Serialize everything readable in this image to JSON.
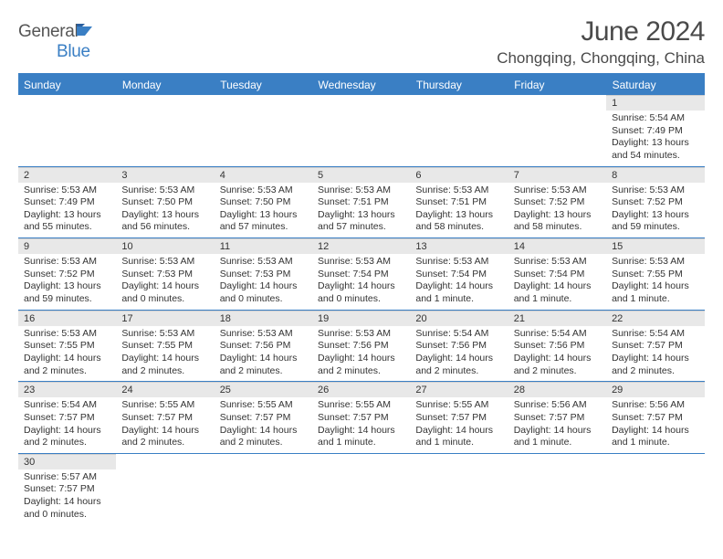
{
  "logo": {
    "general": "General",
    "blue": "Blue"
  },
  "title": "June 2024",
  "location": "Chongqing, Chongqing, China",
  "day_headers": [
    "Sunday",
    "Monday",
    "Tuesday",
    "Wednesday",
    "Thursday",
    "Friday",
    "Saturday"
  ],
  "colors": {
    "accent": "#3a7fc4",
    "header_text": "#ffffff",
    "daynum_bg": "#e8e8e8",
    "text": "#333333",
    "title_text": "#4a4a4a"
  },
  "weeks": [
    [
      null,
      null,
      null,
      null,
      null,
      null,
      {
        "n": "1",
        "lines": [
          "Sunrise: 5:54 AM",
          "Sunset: 7:49 PM",
          "Daylight: 13 hours",
          "and 54 minutes."
        ]
      }
    ],
    [
      {
        "n": "2",
        "lines": [
          "Sunrise: 5:53 AM",
          "Sunset: 7:49 PM",
          "Daylight: 13 hours",
          "and 55 minutes."
        ]
      },
      {
        "n": "3",
        "lines": [
          "Sunrise: 5:53 AM",
          "Sunset: 7:50 PM",
          "Daylight: 13 hours",
          "and 56 minutes."
        ]
      },
      {
        "n": "4",
        "lines": [
          "Sunrise: 5:53 AM",
          "Sunset: 7:50 PM",
          "Daylight: 13 hours",
          "and 57 minutes."
        ]
      },
      {
        "n": "5",
        "lines": [
          "Sunrise: 5:53 AM",
          "Sunset: 7:51 PM",
          "Daylight: 13 hours",
          "and 57 minutes."
        ]
      },
      {
        "n": "6",
        "lines": [
          "Sunrise: 5:53 AM",
          "Sunset: 7:51 PM",
          "Daylight: 13 hours",
          "and 58 minutes."
        ]
      },
      {
        "n": "7",
        "lines": [
          "Sunrise: 5:53 AM",
          "Sunset: 7:52 PM",
          "Daylight: 13 hours",
          "and 58 minutes."
        ]
      },
      {
        "n": "8",
        "lines": [
          "Sunrise: 5:53 AM",
          "Sunset: 7:52 PM",
          "Daylight: 13 hours",
          "and 59 minutes."
        ]
      }
    ],
    [
      {
        "n": "9",
        "lines": [
          "Sunrise: 5:53 AM",
          "Sunset: 7:52 PM",
          "Daylight: 13 hours",
          "and 59 minutes."
        ]
      },
      {
        "n": "10",
        "lines": [
          "Sunrise: 5:53 AM",
          "Sunset: 7:53 PM",
          "Daylight: 14 hours",
          "and 0 minutes."
        ]
      },
      {
        "n": "11",
        "lines": [
          "Sunrise: 5:53 AM",
          "Sunset: 7:53 PM",
          "Daylight: 14 hours",
          "and 0 minutes."
        ]
      },
      {
        "n": "12",
        "lines": [
          "Sunrise: 5:53 AM",
          "Sunset: 7:54 PM",
          "Daylight: 14 hours",
          "and 0 minutes."
        ]
      },
      {
        "n": "13",
        "lines": [
          "Sunrise: 5:53 AM",
          "Sunset: 7:54 PM",
          "Daylight: 14 hours",
          "and 1 minute."
        ]
      },
      {
        "n": "14",
        "lines": [
          "Sunrise: 5:53 AM",
          "Sunset: 7:54 PM",
          "Daylight: 14 hours",
          "and 1 minute."
        ]
      },
      {
        "n": "15",
        "lines": [
          "Sunrise: 5:53 AM",
          "Sunset: 7:55 PM",
          "Daylight: 14 hours",
          "and 1 minute."
        ]
      }
    ],
    [
      {
        "n": "16",
        "lines": [
          "Sunrise: 5:53 AM",
          "Sunset: 7:55 PM",
          "Daylight: 14 hours",
          "and 2 minutes."
        ]
      },
      {
        "n": "17",
        "lines": [
          "Sunrise: 5:53 AM",
          "Sunset: 7:55 PM",
          "Daylight: 14 hours",
          "and 2 minutes."
        ]
      },
      {
        "n": "18",
        "lines": [
          "Sunrise: 5:53 AM",
          "Sunset: 7:56 PM",
          "Daylight: 14 hours",
          "and 2 minutes."
        ]
      },
      {
        "n": "19",
        "lines": [
          "Sunrise: 5:53 AM",
          "Sunset: 7:56 PM",
          "Daylight: 14 hours",
          "and 2 minutes."
        ]
      },
      {
        "n": "20",
        "lines": [
          "Sunrise: 5:54 AM",
          "Sunset: 7:56 PM",
          "Daylight: 14 hours",
          "and 2 minutes."
        ]
      },
      {
        "n": "21",
        "lines": [
          "Sunrise: 5:54 AM",
          "Sunset: 7:56 PM",
          "Daylight: 14 hours",
          "and 2 minutes."
        ]
      },
      {
        "n": "22",
        "lines": [
          "Sunrise: 5:54 AM",
          "Sunset: 7:57 PM",
          "Daylight: 14 hours",
          "and 2 minutes."
        ]
      }
    ],
    [
      {
        "n": "23",
        "lines": [
          "Sunrise: 5:54 AM",
          "Sunset: 7:57 PM",
          "Daylight: 14 hours",
          "and 2 minutes."
        ]
      },
      {
        "n": "24",
        "lines": [
          "Sunrise: 5:55 AM",
          "Sunset: 7:57 PM",
          "Daylight: 14 hours",
          "and 2 minutes."
        ]
      },
      {
        "n": "25",
        "lines": [
          "Sunrise: 5:55 AM",
          "Sunset: 7:57 PM",
          "Daylight: 14 hours",
          "and 2 minutes."
        ]
      },
      {
        "n": "26",
        "lines": [
          "Sunrise: 5:55 AM",
          "Sunset: 7:57 PM",
          "Daylight: 14 hours",
          "and 1 minute."
        ]
      },
      {
        "n": "27",
        "lines": [
          "Sunrise: 5:55 AM",
          "Sunset: 7:57 PM",
          "Daylight: 14 hours",
          "and 1 minute."
        ]
      },
      {
        "n": "28",
        "lines": [
          "Sunrise: 5:56 AM",
          "Sunset: 7:57 PM",
          "Daylight: 14 hours",
          "and 1 minute."
        ]
      },
      {
        "n": "29",
        "lines": [
          "Sunrise: 5:56 AM",
          "Sunset: 7:57 PM",
          "Daylight: 14 hours",
          "and 1 minute."
        ]
      }
    ],
    [
      {
        "n": "30",
        "lines": [
          "Sunrise: 5:57 AM",
          "Sunset: 7:57 PM",
          "Daylight: 14 hours",
          "and 0 minutes."
        ]
      },
      null,
      null,
      null,
      null,
      null,
      null
    ]
  ]
}
